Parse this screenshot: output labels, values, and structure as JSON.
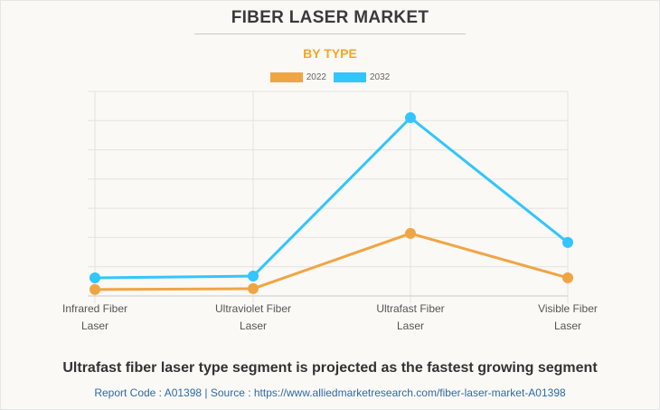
{
  "header": {
    "title": "FIBER LASER MARKET",
    "subtitle": "BY TYPE"
  },
  "colors": {
    "series_2022": "#f0a545",
    "series_2032": "#33c5fd",
    "grid": "#e4e3df",
    "accent": "#f5a623"
  },
  "chart_data": {
    "type": "line",
    "title": "FIBER LASER MARKET",
    "subtitle": "BY TYPE",
    "xlabel": "",
    "ylabel": "",
    "categories": [
      "Infrared Fiber Laser",
      "Ultraviolet Fiber Laser",
      "Ultrafast Fiber Laser",
      "Visible Fiber Laser"
    ],
    "category_lines": [
      [
        "Infrared Fiber",
        "Laser"
      ],
      [
        "Ultraviolet Fiber",
        "Laser"
      ],
      [
        "Ultrafast Fiber",
        "Laser"
      ],
      [
        "Visible Fiber",
        "Laser"
      ]
    ],
    "series": [
      {
        "name": "2022",
        "values": [
          0.22,
          0.25,
          2.14,
          0.62
        ]
      },
      {
        "name": "2032",
        "values": [
          0.62,
          0.68,
          6.1,
          1.83
        ]
      }
    ],
    "ylim": [
      0,
      7
    ],
    "grid": true,
    "legend": "top-center",
    "y_tick_labels_shown": false
  },
  "footer": {
    "headline": "Ultrafast fiber laser type segment is projected as the fastest growing segment",
    "source": "Report Code : A01398  |  Source : https://www.alliedmarketresearch.com/fiber-laser-market-A01398"
  }
}
